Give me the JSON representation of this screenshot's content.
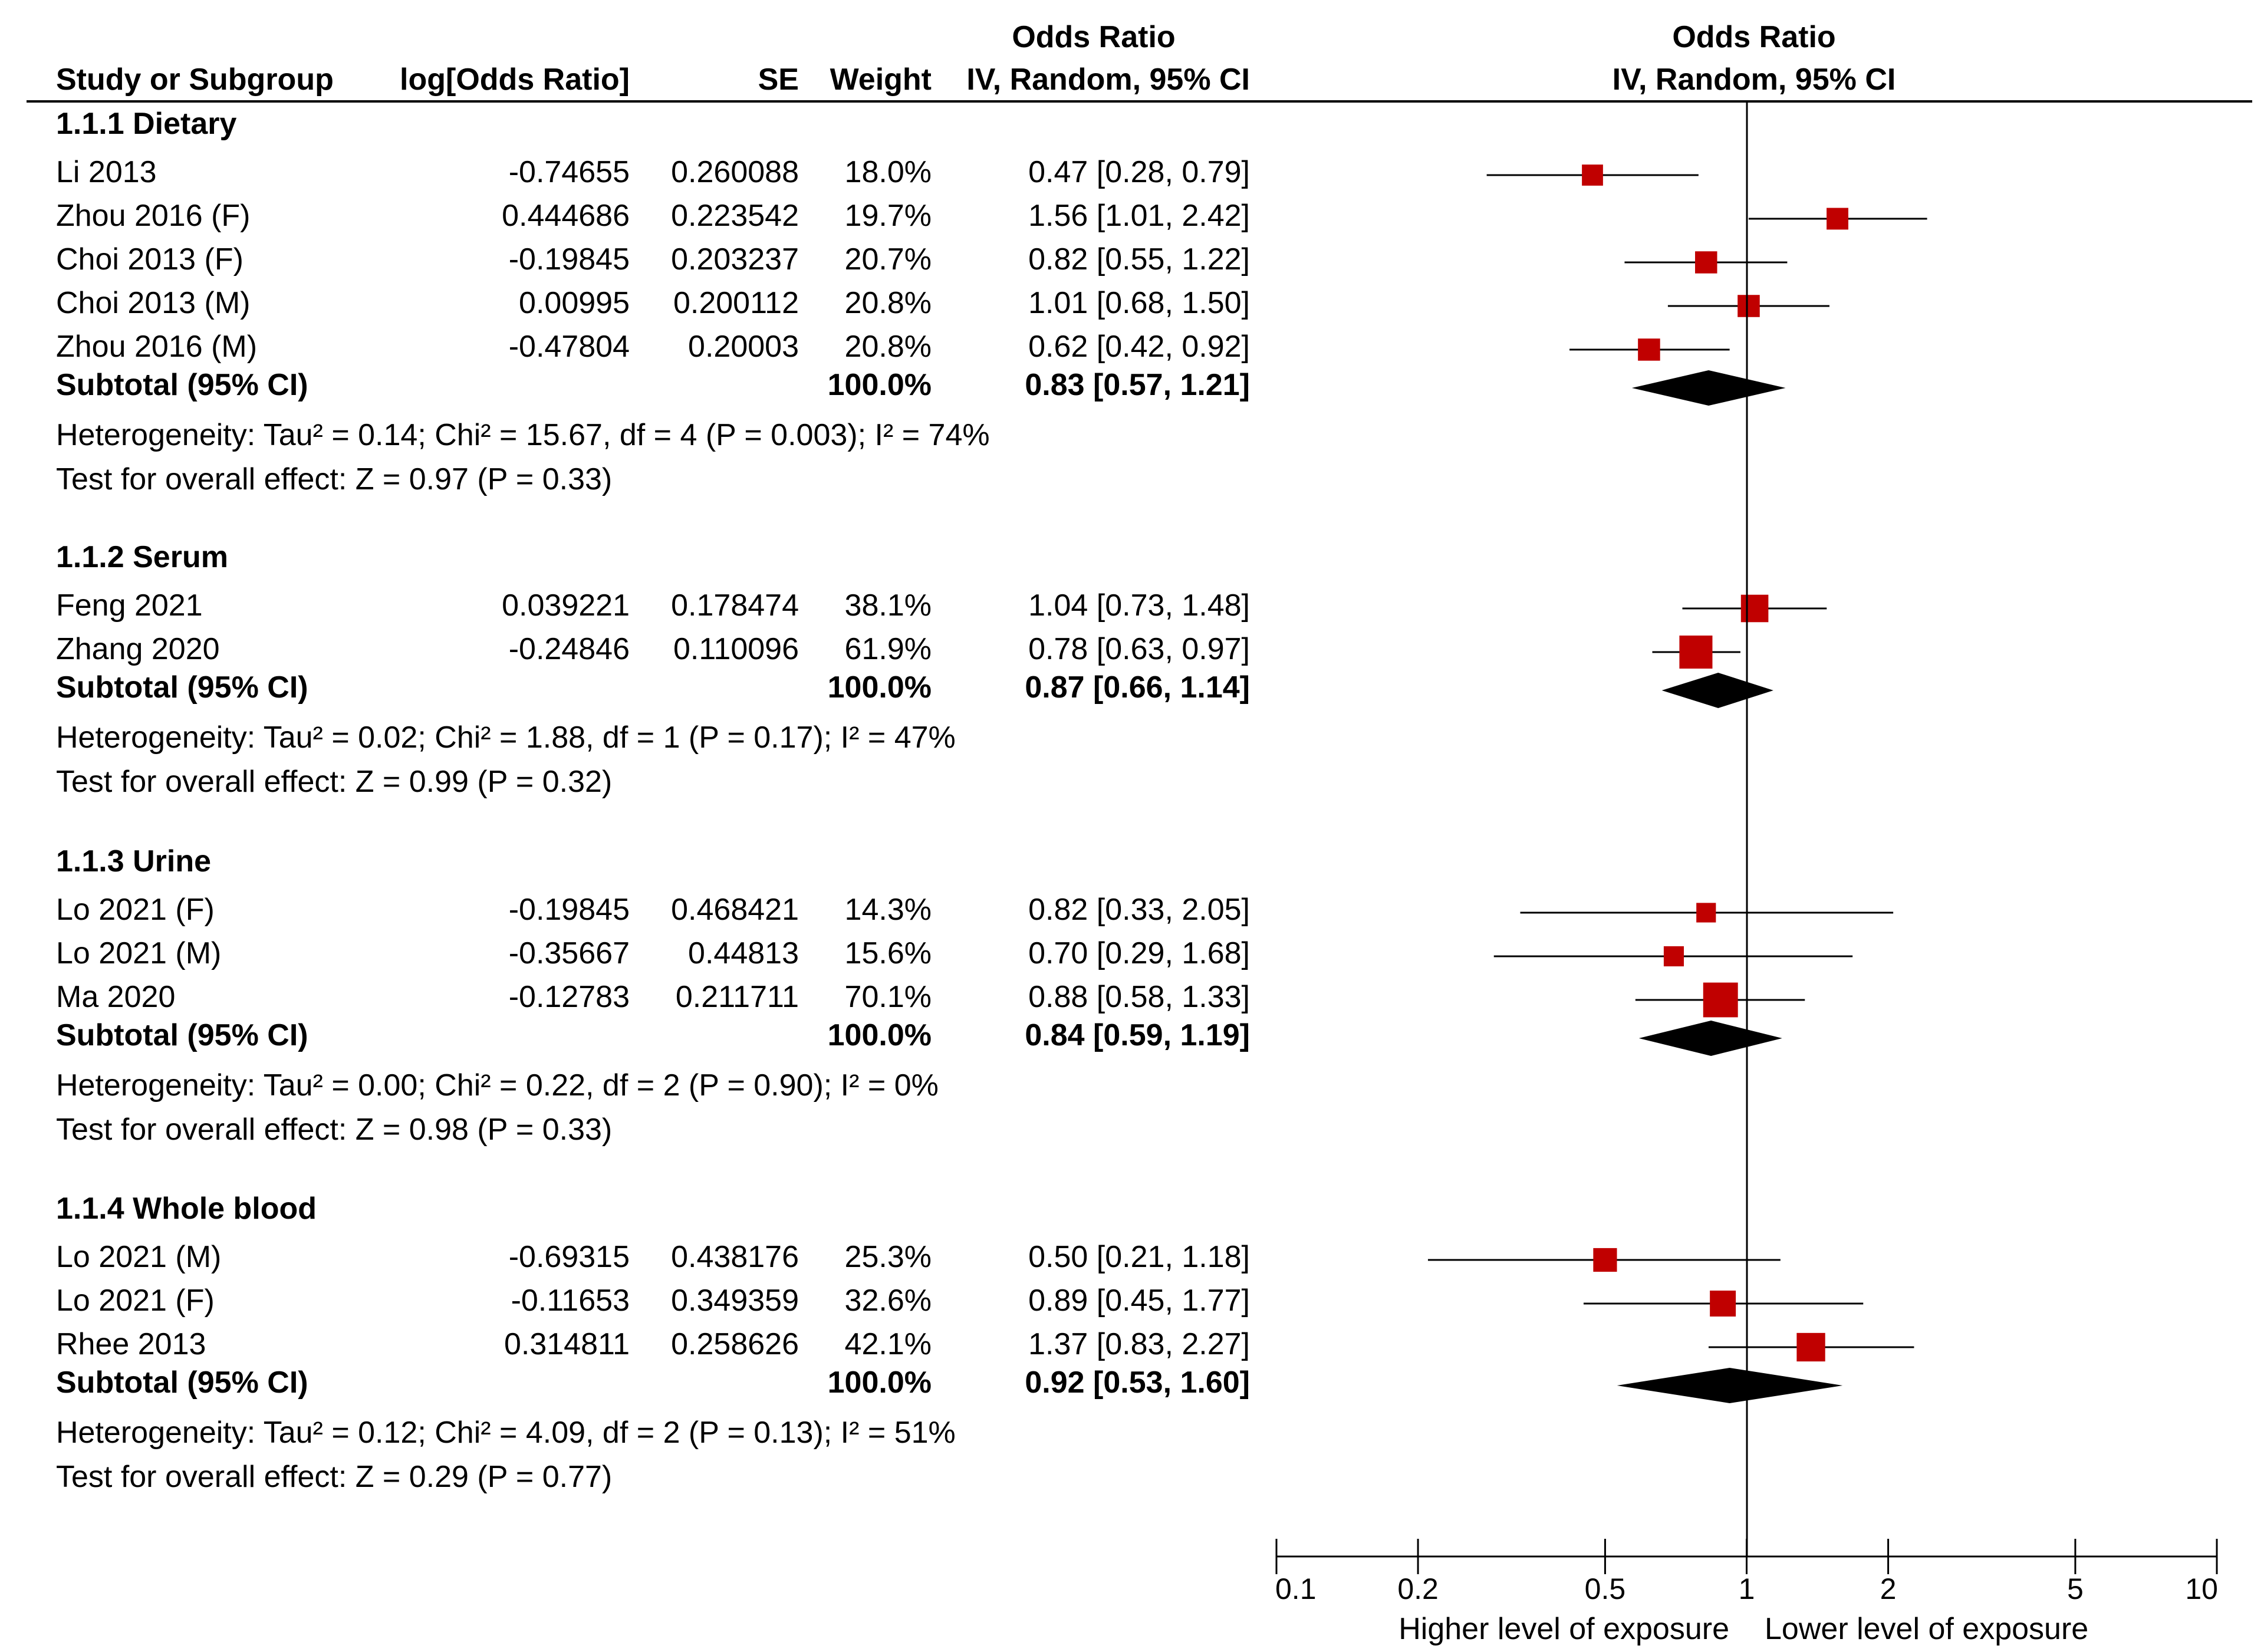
{
  "chart_data": {
    "type": "forest",
    "title": "",
    "columns": {
      "study": "Study or Subgroup",
      "logor": "log[Odds Ratio]",
      "se": "SE",
      "weight": "Weight",
      "or_top": "Odds Ratio",
      "or_sub": "IV, Random, 95% CI",
      "plot_top": "Odds Ratio",
      "plot_sub": "IV, Random, 95% CI"
    },
    "axis": {
      "scale": "log",
      "range": [
        0.1,
        10
      ],
      "ticks": [
        0.1,
        0.2,
        0.5,
        1,
        2,
        5,
        10
      ],
      "tick_labels": [
        "0.1",
        "0.2",
        "0.5",
        "1",
        "2",
        "5",
        "10"
      ],
      "left_label": "Higher level of exposure",
      "right_label": "Lower level of exposure"
    },
    "colors": {
      "study_marker": "#c00000",
      "diamond": "#000000",
      "line": "#000000"
    },
    "subgroups": [
      {
        "title": "1.1.1 Dietary",
        "studies": [
          {
            "name": "Li 2013",
            "logor": "-0.74655",
            "se": "0.260088",
            "weight": "18.0%",
            "ci_text": "0.47 [0.28, 0.79]",
            "or": 0.47,
            "lo": 0.28,
            "hi": 0.79,
            "w": 18.0
          },
          {
            "name": "Zhou 2016 (F)",
            "logor": "0.444686",
            "se": "0.223542",
            "weight": "19.7%",
            "ci_text": "1.56 [1.01, 2.42]",
            "or": 1.56,
            "lo": 1.01,
            "hi": 2.42,
            "w": 19.7
          },
          {
            "name": "Choi 2013 (F)",
            "logor": "-0.19845",
            "se": "0.203237",
            "weight": "20.7%",
            "ci_text": "0.82 [0.55, 1.22]",
            "or": 0.82,
            "lo": 0.55,
            "hi": 1.22,
            "w": 20.7
          },
          {
            "name": "Choi 2013 (M)",
            "logor": "0.00995",
            "se": "0.200112",
            "weight": "20.8%",
            "ci_text": "1.01 [0.68, 1.50]",
            "or": 1.01,
            "lo": 0.68,
            "hi": 1.5,
            "w": 20.8
          },
          {
            "name": "Zhou 2016 (M)",
            "logor": "-0.47804",
            "se": "0.20003",
            "weight": "20.8%",
            "ci_text": "0.62 [0.42, 0.92]",
            "or": 0.62,
            "lo": 0.42,
            "hi": 0.92,
            "w": 20.8
          }
        ],
        "subtotal": {
          "label": "Subtotal (95% CI)",
          "weight": "100.0%",
          "ci_text": "0.83 [0.57, 1.21]",
          "or": 0.83,
          "lo": 0.57,
          "hi": 1.21
        },
        "heterogeneity": "Heterogeneity: Tau² = 0.14; Chi² = 15.67, df = 4 (P = 0.003); I² = 74%",
        "overall": "Test for overall effect: Z = 0.97 (P = 0.33)"
      },
      {
        "title": "1.1.2 Serum",
        "studies": [
          {
            "name": "Feng 2021",
            "logor": "0.039221",
            "se": "0.178474",
            "weight": "38.1%",
            "ci_text": "1.04 [0.73, 1.48]",
            "or": 1.04,
            "lo": 0.73,
            "hi": 1.48,
            "w": 38.1
          },
          {
            "name": "Zhang 2020",
            "logor": "-0.24846",
            "se": "0.110096",
            "weight": "61.9%",
            "ci_text": "0.78 [0.63, 0.97]",
            "or": 0.78,
            "lo": 0.63,
            "hi": 0.97,
            "w": 61.9
          }
        ],
        "subtotal": {
          "label": "Subtotal (95% CI)",
          "weight": "100.0%",
          "ci_text": "0.87 [0.66, 1.14]",
          "or": 0.87,
          "lo": 0.66,
          "hi": 1.14
        },
        "heterogeneity": "Heterogeneity: Tau² = 0.02; Chi² = 1.88, df = 1 (P = 0.17); I² = 47%",
        "overall": "Test for overall effect: Z = 0.99 (P = 0.32)"
      },
      {
        "title": "1.1.3 Urine",
        "studies": [
          {
            "name": "Lo 2021 (F)",
            "logor": "-0.19845",
            "se": "0.468421",
            "weight": "14.3%",
            "ci_text": "0.82 [0.33, 2.05]",
            "or": 0.82,
            "lo": 0.33,
            "hi": 2.05,
            "w": 14.3
          },
          {
            "name": "Lo 2021 (M)",
            "logor": "-0.35667",
            "se": "0.44813",
            "weight": "15.6%",
            "ci_text": "0.70 [0.29, 1.68]",
            "or": 0.7,
            "lo": 0.29,
            "hi": 1.68,
            "w": 15.6
          },
          {
            "name": "Ma 2020",
            "logor": "-0.12783",
            "se": "0.211711",
            "weight": "70.1%",
            "ci_text": "0.88 [0.58, 1.33]",
            "or": 0.88,
            "lo": 0.58,
            "hi": 1.33,
            "w": 70.1
          }
        ],
        "subtotal": {
          "label": "Subtotal (95% CI)",
          "weight": "100.0%",
          "ci_text": "0.84 [0.59, 1.19]",
          "or": 0.84,
          "lo": 0.59,
          "hi": 1.19
        },
        "heterogeneity": "Heterogeneity: Tau² = 0.00; Chi² = 0.22, df = 2 (P = 0.90); I² = 0%",
        "overall": "Test for overall effect: Z = 0.98 (P = 0.33)"
      },
      {
        "title": "1.1.4 Whole blood",
        "studies": [
          {
            "name": "Lo 2021 (M)",
            "logor": "-0.69315",
            "se": "0.438176",
            "weight": "25.3%",
            "ci_text": "0.50 [0.21, 1.18]",
            "or": 0.5,
            "lo": 0.21,
            "hi": 1.18,
            "w": 25.3
          },
          {
            "name": "Lo 2021 (F)",
            "logor": "-0.11653",
            "se": "0.349359",
            "weight": "32.6%",
            "ci_text": "0.89 [0.45, 1.77]",
            "or": 0.89,
            "lo": 0.45,
            "hi": 1.77,
            "w": 32.6
          },
          {
            "name": "Rhee 2013",
            "logor": "0.314811",
            "se": "0.258626",
            "weight": "42.1%",
            "ci_text": "1.37 [0.83, 2.27]",
            "or": 1.37,
            "lo": 0.83,
            "hi": 2.27,
            "w": 42.1
          }
        ],
        "subtotal": {
          "label": "Subtotal (95% CI)",
          "weight": "100.0%",
          "ci_text": "0.92 [0.53, 1.60]",
          "or": 0.92,
          "lo": 0.53,
          "hi": 1.6
        },
        "heterogeneity": "Heterogeneity: Tau² = 0.12; Chi² = 4.09, df = 2 (P = 0.13); I² = 51%",
        "overall": "Test for overall effect: Z = 0.29 (P = 0.77)"
      }
    ]
  }
}
